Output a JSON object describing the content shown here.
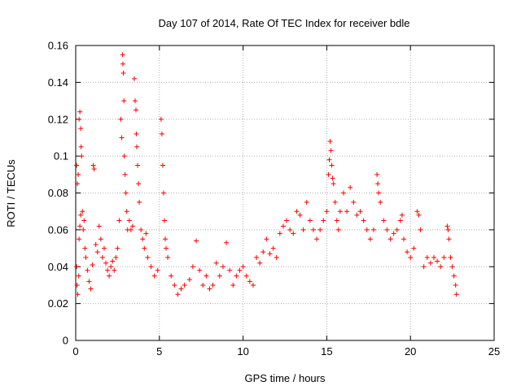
{
  "chart_data": {
    "type": "scatter",
    "title": "Day 107 of 2014, Rate Of TEC Index for receiver bdle",
    "xlabel": "GPS time / hours",
    "ylabel": "ROTI / TECUs",
    "xlim": [
      0,
      25
    ],
    "ylim": [
      0,
      0.16
    ],
    "xticks": [
      0,
      5,
      10,
      15,
      20,
      25
    ],
    "yticks": [
      0,
      0.02,
      0.04,
      0.06,
      0.08,
      0.1,
      0.12,
      0.14,
      0.16
    ],
    "xtick_labels": [
      "0",
      "5",
      "10",
      "15",
      "20",
      "25"
    ],
    "ytick_labels": [
      "0",
      "0.02",
      "0.04",
      "0.06",
      "0.08",
      "0.1",
      "0.12",
      "0.14",
      "0.16"
    ],
    "grid": true,
    "marker": "+",
    "color": "#ff0000",
    "series": [
      {
        "name": "ROTI",
        "points": [
          [
            0.05,
            0.095
          ],
          [
            0.1,
            0.085
          ],
          [
            0.15,
            0.09
          ],
          [
            0.2,
            0.12
          ],
          [
            0.25,
            0.124
          ],
          [
            0.3,
            0.115
          ],
          [
            0.32,
            0.105
          ],
          [
            0.35,
            0.1
          ],
          [
            0.4,
            0.07
          ],
          [
            0.45,
            0.06
          ],
          [
            0.5,
            0.065
          ],
          [
            0.55,
            0.05
          ],
          [
            0.6,
            0.045
          ],
          [
            0.2,
            0.055
          ],
          [
            0.25,
            0.062
          ],
          [
            0.3,
            0.068
          ],
          [
            0.05,
            0.04
          ],
          [
            0.08,
            0.03
          ],
          [
            0.12,
            0.025
          ],
          [
            0.18,
            0.035
          ],
          [
            0.7,
            0.038
          ],
          [
            0.8,
            0.032
          ],
          [
            0.9,
            0.028
          ],
          [
            1.0,
            0.041
          ],
          [
            1.05,
            0.095
          ],
          [
            1.1,
            0.093
          ],
          [
            1.2,
            0.052
          ],
          [
            1.3,
            0.048
          ],
          [
            1.4,
            0.062
          ],
          [
            1.5,
            0.055
          ],
          [
            1.6,
            0.045
          ],
          [
            1.7,
            0.05
          ],
          [
            1.8,
            0.042
          ],
          [
            1.9,
            0.038
          ],
          [
            2.0,
            0.035
          ],
          [
            2.1,
            0.04
          ],
          [
            2.2,
            0.043
          ],
          [
            2.3,
            0.038
          ],
          [
            2.4,
            0.045
          ],
          [
            2.5,
            0.05
          ],
          [
            2.6,
            0.065
          ],
          [
            2.7,
            0.12
          ],
          [
            2.75,
            0.11
          ],
          [
            2.8,
            0.155
          ],
          [
            2.82,
            0.15
          ],
          [
            2.85,
            0.145
          ],
          [
            2.88,
            0.13
          ],
          [
            2.9,
            0.1
          ],
          [
            2.95,
            0.09
          ],
          [
            3.0,
            0.08
          ],
          [
            3.05,
            0.07
          ],
          [
            3.1,
            0.06
          ],
          [
            3.2,
            0.065
          ],
          [
            3.3,
            0.06
          ],
          [
            3.4,
            0.062
          ],
          [
            3.5,
            0.142
          ],
          [
            3.55,
            0.13
          ],
          [
            3.6,
            0.125
          ],
          [
            3.62,
            0.112
          ],
          [
            3.65,
            0.105
          ],
          [
            3.7,
            0.095
          ],
          [
            3.75,
            0.085
          ],
          [
            3.8,
            0.075
          ],
          [
            3.9,
            0.06
          ],
          [
            4.0,
            0.055
          ],
          [
            4.1,
            0.05
          ],
          [
            4.2,
            0.058
          ],
          [
            4.3,
            0.045
          ],
          [
            4.5,
            0.04
          ],
          [
            4.7,
            0.035
          ],
          [
            4.9,
            0.038
          ],
          [
            5.1,
            0.12
          ],
          [
            5.15,
            0.112
          ],
          [
            5.2,
            0.095
          ],
          [
            5.25,
            0.08
          ],
          [
            5.3,
            0.065
          ],
          [
            5.35,
            0.055
          ],
          [
            5.4,
            0.05
          ],
          [
            5.5,
            0.045
          ],
          [
            5.7,
            0.035
          ],
          [
            5.9,
            0.03
          ],
          [
            6.1,
            0.025
          ],
          [
            6.3,
            0.028
          ],
          [
            6.5,
            0.03
          ],
          [
            6.8,
            0.033
          ],
          [
            7.0,
            0.04
          ],
          [
            7.2,
            0.054
          ],
          [
            7.4,
            0.038
          ],
          [
            7.6,
            0.03
          ],
          [
            7.8,
            0.035
          ],
          [
            8.0,
            0.028
          ],
          [
            8.2,
            0.03
          ],
          [
            8.4,
            0.042
          ],
          [
            8.6,
            0.035
          ],
          [
            8.8,
            0.04
          ],
          [
            9.0,
            0.053
          ],
          [
            9.2,
            0.038
          ],
          [
            9.4,
            0.03
          ],
          [
            9.6,
            0.035
          ],
          [
            9.8,
            0.038
          ],
          [
            10.0,
            0.04
          ],
          [
            10.2,
            0.035
          ],
          [
            10.4,
            0.032
          ],
          [
            10.6,
            0.03
          ],
          [
            10.8,
            0.045
          ],
          [
            11.0,
            0.042
          ],
          [
            11.2,
            0.048
          ],
          [
            11.4,
            0.055
          ],
          [
            11.6,
            0.047
          ],
          [
            11.8,
            0.05
          ],
          [
            12.0,
            0.045
          ],
          [
            12.2,
            0.058
          ],
          [
            12.4,
            0.062
          ],
          [
            12.6,
            0.065
          ],
          [
            12.8,
            0.06
          ],
          [
            13.0,
            0.058
          ],
          [
            13.2,
            0.07
          ],
          [
            13.4,
            0.068
          ],
          [
            13.6,
            0.06
          ],
          [
            13.8,
            0.075
          ],
          [
            14.0,
            0.065
          ],
          [
            14.2,
            0.06
          ],
          [
            14.4,
            0.055
          ],
          [
            14.6,
            0.06
          ],
          [
            14.8,
            0.065
          ],
          [
            15.0,
            0.07
          ],
          [
            15.1,
            0.09
          ],
          [
            15.15,
            0.098
          ],
          [
            15.2,
            0.108
          ],
          [
            15.25,
            0.103
          ],
          [
            15.3,
            0.095
          ],
          [
            15.35,
            0.088
          ],
          [
            15.4,
            0.085
          ],
          [
            15.5,
            0.075
          ],
          [
            15.6,
            0.065
          ],
          [
            15.7,
            0.06
          ],
          [
            15.8,
            0.07
          ],
          [
            16.0,
            0.08
          ],
          [
            16.2,
            0.07
          ],
          [
            16.4,
            0.083
          ],
          [
            16.6,
            0.075
          ],
          [
            16.8,
            0.068
          ],
          [
            17.0,
            0.07
          ],
          [
            17.2,
            0.065
          ],
          [
            17.4,
            0.06
          ],
          [
            17.6,
            0.055
          ],
          [
            17.8,
            0.06
          ],
          [
            18.0,
            0.09
          ],
          [
            18.05,
            0.085
          ],
          [
            18.1,
            0.08
          ],
          [
            18.2,
            0.075
          ],
          [
            18.4,
            0.065
          ],
          [
            18.6,
            0.06
          ],
          [
            18.8,
            0.055
          ],
          [
            19.0,
            0.058
          ],
          [
            19.2,
            0.06
          ],
          [
            19.4,
            0.065
          ],
          [
            19.5,
            0.068
          ],
          [
            19.6,
            0.055
          ],
          [
            19.8,
            0.048
          ],
          [
            20.0,
            0.045
          ],
          [
            20.2,
            0.05
          ],
          [
            20.4,
            0.07
          ],
          [
            20.5,
            0.068
          ],
          [
            20.6,
            0.06
          ],
          [
            20.8,
            0.04
          ],
          [
            21.0,
            0.045
          ],
          [
            21.2,
            0.042
          ],
          [
            21.4,
            0.045
          ],
          [
            21.6,
            0.043
          ],
          [
            21.8,
            0.04
          ],
          [
            22.0,
            0.045
          ],
          [
            22.2,
            0.062
          ],
          [
            22.25,
            0.06
          ],
          [
            22.3,
            0.055
          ],
          [
            22.4,
            0.045
          ],
          [
            22.5,
            0.04
          ],
          [
            22.6,
            0.035
          ],
          [
            22.7,
            0.03
          ],
          [
            22.75,
            0.025
          ]
        ]
      }
    ]
  }
}
